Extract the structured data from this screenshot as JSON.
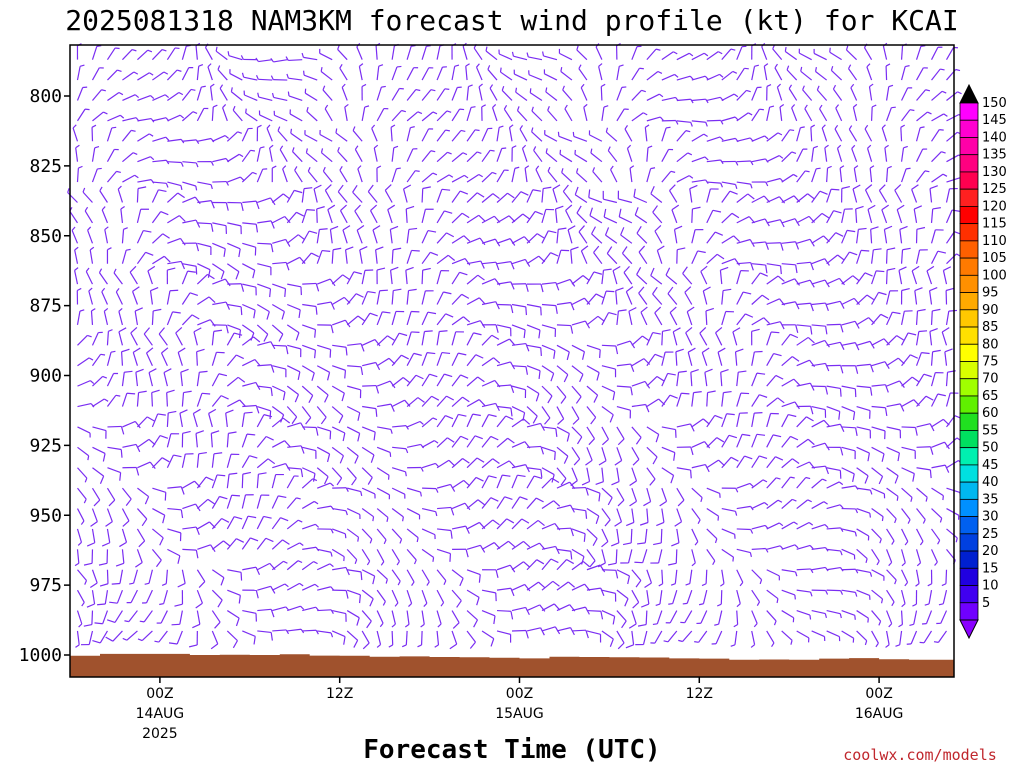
{
  "chart_data": {
    "type": "wind-profile",
    "title": "2025081318 NAM3KM forecast wind profile (kt) for KCAI",
    "xlabel": "Forecast Time (UTC)",
    "credit": "coolwx.com/models",
    "y_axis": {
      "ticks": [
        "800",
        "825",
        "850",
        "875",
        "900",
        "925",
        "950",
        "975",
        "1000"
      ],
      "ylim": [
        783,
        1007
      ],
      "reversed": true,
      "units": "hPa"
    },
    "x_axis": {
      "ticks": [
        {
          "label": "00Z",
          "date": "14AUG",
          "year": "2025",
          "hour": 6
        },
        {
          "label": "12Z",
          "date": "",
          "year": "",
          "hour": 18
        },
        {
          "label": "00Z",
          "date": "15AUG",
          "year": "",
          "hour": 30
        },
        {
          "label": "12Z",
          "date": "",
          "year": "",
          "hour": 42
        },
        {
          "label": "00Z",
          "date": "16AUG",
          "year": "",
          "hour": 54
        }
      ],
      "xlim": [
        0,
        59
      ],
      "units": "forecast hour"
    },
    "colorbar": {
      "ticks": [
        "150",
        "145",
        "140",
        "135",
        "130",
        "125",
        "120",
        "115",
        "110",
        "105",
        "100",
        "95",
        "90",
        "85",
        "80",
        "75",
        "70",
        "65",
        "60",
        "55",
        "50",
        "45",
        "40",
        "35",
        "30",
        "25",
        "20",
        "15",
        "10",
        "5"
      ],
      "colors": [
        "#ff00ff",
        "#ff00d0",
        "#ff00a8",
        "#ff0080",
        "#ff0050",
        "#ff2020",
        "#ff0000",
        "#ff3000",
        "#ff6000",
        "#ff7a00",
        "#ff9000",
        "#ffaa00",
        "#ffc800",
        "#ffe000",
        "#ffff00",
        "#d8ff00",
        "#a0ff00",
        "#60f000",
        "#20e020",
        "#00e060",
        "#00f0b0",
        "#00e0e0",
        "#00b8f0",
        "#0090ff",
        "#0060f0",
        "#0040e0",
        "#0020d0",
        "#2000e0",
        "#4000f0",
        "#7000ff"
      ]
    },
    "barb_color": "#7a2df2",
    "terrain_color": "#a0522d",
    "surface_pressure": {
      "hours": [
        0,
        2,
        4,
        6,
        8,
        10,
        12,
        14,
        16,
        18,
        20,
        22,
        24,
        26,
        28,
        30,
        32,
        34,
        36,
        38,
        40,
        42,
        44,
        46,
        48,
        50,
        52,
        54,
        56,
        58,
        59
      ],
      "values": [
        1000.3,
        999.6,
        999.6,
        999.6,
        1000.0,
        999.9,
        1000.0,
        999.7,
        1000.2,
        1000.3,
        1000.6,
        1000.5,
        1000.7,
        1000.8,
        1001.0,
        1001.2,
        1000.6,
        1000.7,
        1000.8,
        1000.9,
        1001.2,
        1001.3,
        1001.7,
        1001.6,
        1001.7,
        1001.3,
        1001.1,
        1001.5,
        1001.7,
        1001.7,
        1001.8
      ]
    },
    "barbs": {
      "hours_start": 0,
      "hours_step": 1,
      "levels": [
        975,
        950,
        925,
        900,
        875,
        850,
        825,
        800
      ],
      "speed_kt_by_level": [
        [
          5,
          10,
          10,
          10,
          5,
          5,
          5,
          10,
          10,
          10,
          10,
          10,
          10,
          5,
          5,
          5,
          5,
          10,
          10,
          10,
          5,
          5,
          5,
          5,
          5,
          10,
          10,
          10,
          10,
          10,
          10,
          10,
          10,
          10,
          10,
          10,
          10,
          10,
          10,
          5,
          5,
          5,
          5,
          5,
          5,
          5,
          5,
          5,
          5,
          5,
          5,
          5,
          5,
          5,
          5,
          5,
          5,
          5,
          5,
          5
        ],
        [
          5,
          10,
          10,
          10,
          10,
          10,
          10,
          10,
          10,
          10,
          10,
          10,
          10,
          10,
          5,
          5,
          5,
          5,
          5,
          5,
          5,
          5,
          5,
          5,
          10,
          10,
          10,
          10,
          10,
          10,
          10,
          10,
          10,
          10,
          10,
          10,
          10,
          10,
          10,
          10,
          10,
          5,
          5,
          5,
          5,
          5,
          5,
          5,
          5,
          5,
          5,
          5,
          5,
          5,
          5,
          5,
          5,
          5,
          5,
          5
        ],
        [
          5,
          10,
          10,
          10,
          10,
          10,
          10,
          10,
          10,
          10,
          10,
          10,
          10,
          10,
          10,
          10,
          10,
          10,
          10,
          10,
          5,
          5,
          5,
          5,
          10,
          10,
          10,
          10,
          10,
          10,
          10,
          10,
          10,
          10,
          10,
          10,
          10,
          10,
          10,
          10,
          10,
          10,
          10,
          10,
          10,
          10,
          10,
          10,
          10,
          10,
          10,
          10,
          10,
          10,
          10,
          10,
          10,
          10,
          10,
          10
        ],
        [
          5,
          5,
          5,
          10,
          10,
          10,
          10,
          10,
          10,
          10,
          10,
          10,
          10,
          10,
          10,
          10,
          10,
          10,
          10,
          10,
          10,
          10,
          10,
          10,
          10,
          10,
          10,
          10,
          10,
          10,
          10,
          10,
          10,
          10,
          10,
          10,
          10,
          10,
          10,
          10,
          10,
          10,
          10,
          10,
          10,
          10,
          10,
          10,
          10,
          10,
          10,
          10,
          10,
          10,
          10,
          10,
          10,
          10,
          10,
          10
        ],
        [
          5,
          5,
          5,
          5,
          10,
          10,
          10,
          10,
          10,
          10,
          10,
          10,
          10,
          10,
          10,
          10,
          10,
          10,
          10,
          10,
          10,
          10,
          10,
          10,
          10,
          10,
          10,
          10,
          10,
          10,
          10,
          10,
          10,
          10,
          10,
          10,
          10,
          10,
          10,
          10,
          10,
          10,
          10,
          10,
          10,
          10,
          10,
          10,
          10,
          10,
          10,
          10,
          10,
          10,
          10,
          10,
          10,
          10,
          10,
          10
        ],
        [
          5,
          5,
          5,
          5,
          10,
          10,
          10,
          10,
          10,
          10,
          10,
          10,
          10,
          10,
          10,
          10,
          10,
          10,
          10,
          10,
          10,
          10,
          10,
          10,
          10,
          10,
          10,
          10,
          10,
          10,
          10,
          10,
          10,
          10,
          10,
          10,
          10,
          10,
          10,
          10,
          10,
          10,
          10,
          10,
          10,
          10,
          10,
          10,
          10,
          10,
          10,
          10,
          10,
          10,
          10,
          10,
          10,
          10,
          10,
          10
        ],
        [
          5,
          5,
          5,
          5,
          5,
          5,
          5,
          5,
          5,
          5,
          5,
          5,
          5,
          5,
          5,
          5,
          5,
          5,
          5,
          5,
          5,
          5,
          5,
          5,
          5,
          5,
          5,
          5,
          5,
          5,
          5,
          5,
          5,
          5,
          5,
          5,
          5,
          5,
          5,
          5,
          5,
          5,
          5,
          5,
          5,
          5,
          5,
          5,
          5,
          5,
          5,
          5,
          5,
          5,
          5,
          5,
          5,
          5,
          5,
          5
        ],
        [
          5,
          5,
          5,
          5,
          5,
          5,
          5,
          5,
          5,
          5,
          5,
          5,
          5,
          5,
          5,
          5,
          5,
          5,
          5,
          5,
          5,
          5,
          5,
          5,
          5,
          5,
          5,
          5,
          5,
          5,
          5,
          5,
          5,
          5,
          5,
          5,
          5,
          5,
          5,
          5,
          5,
          5,
          5,
          5,
          5,
          5,
          5,
          5,
          5,
          5,
          5,
          5,
          5,
          5,
          5,
          5,
          5,
          5,
          5,
          5
        ]
      ]
    }
  }
}
